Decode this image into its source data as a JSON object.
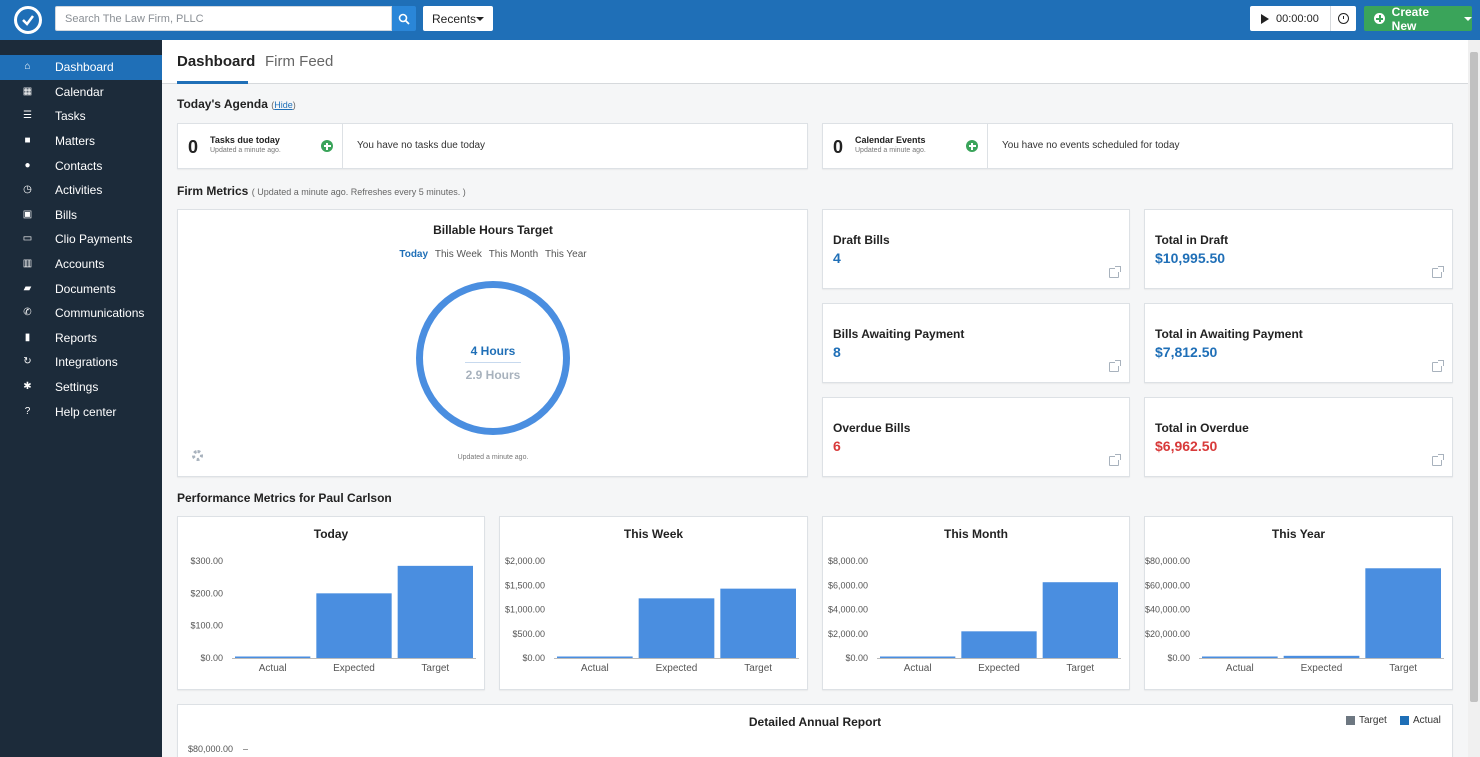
{
  "search": {
    "placeholder": "Search The Law Firm, PLLC"
  },
  "recents_label": "Recents",
  "timer_value": "00:00:00",
  "create_new_label": "Create New",
  "sidebar": {
    "items": [
      {
        "label": "Dashboard",
        "icon": "home-icon",
        "active": true
      },
      {
        "label": "Calendar",
        "icon": "calendar-icon"
      },
      {
        "label": "Tasks",
        "icon": "list-icon"
      },
      {
        "label": "Matters",
        "icon": "briefcase-icon"
      },
      {
        "label": "Contacts",
        "icon": "user-icon"
      },
      {
        "label": "Activities",
        "icon": "clock-icon"
      },
      {
        "label": "Bills",
        "icon": "money-icon"
      },
      {
        "label": "Clio Payments",
        "icon": "card-icon"
      },
      {
        "label": "Accounts",
        "icon": "bank-icon"
      },
      {
        "label": "Documents",
        "icon": "folder-icon"
      },
      {
        "label": "Communications",
        "icon": "phone-icon"
      },
      {
        "label": "Reports",
        "icon": "bar-chart-icon"
      },
      {
        "label": "Integrations",
        "icon": "refresh-icon"
      },
      {
        "label": "Settings",
        "icon": "gear-icon"
      },
      {
        "label": "Help center",
        "icon": "question-icon"
      }
    ]
  },
  "tabs": {
    "dashboard": "Dashboard",
    "firm_feed": "Firm Feed"
  },
  "agenda": {
    "title": "Today's Agenda",
    "hide_link": "Hide",
    "tasks": {
      "count": "0",
      "label": "Tasks due today",
      "updated": "Updated a minute ago.",
      "message": "You have no tasks due today"
    },
    "events": {
      "count": "0",
      "label": "Calendar Events",
      "updated": "Updated a minute ago.",
      "message": "You have no events scheduled for today"
    }
  },
  "firm_metrics": {
    "title": "Firm Metrics",
    "subtitle": "( Updated a minute ago. Refreshes every 5 minutes. )",
    "billable": {
      "title": "Billable Hours Target",
      "periods": [
        "Today",
        "This Week",
        "This Month",
        "This Year"
      ],
      "target": "4 Hours",
      "actual": "2.9 Hours",
      "updated": "Updated a minute ago."
    },
    "cards": [
      {
        "label": "Draft Bills",
        "value": "4",
        "color": "#1f6fb7"
      },
      {
        "label": "Total in Draft",
        "value": "$10,995.50",
        "color": "#1f6fb7"
      },
      {
        "label": "Bills Awaiting Payment",
        "value": "8",
        "color": "#1f6fb7"
      },
      {
        "label": "Total in Awaiting Payment",
        "value": "$7,812.50",
        "color": "#1f6fb7"
      },
      {
        "label": "Overdue Bills",
        "value": "6",
        "color": "#d83a3a"
      },
      {
        "label": "Total in Overdue",
        "value": "$6,962.50",
        "color": "#d83a3a"
      }
    ]
  },
  "performance": {
    "title": "Performance Metrics for Paul Carlson"
  },
  "chart_data": [
    {
      "type": "bar",
      "title": "Today",
      "categories": [
        "Actual",
        "Expected",
        "Target"
      ],
      "values": [
        0,
        200,
        285
      ],
      "yticks": [
        "$300.00",
        "$200.00",
        "$100.00",
        "$0.00"
      ],
      "ylim": [
        0,
        300
      ]
    },
    {
      "type": "bar",
      "title": "This Week",
      "categories": [
        "Actual",
        "Expected",
        "Target"
      ],
      "values": [
        0,
        1230,
        1430
      ],
      "yticks": [
        "$2,000.00",
        "$1,500.00",
        "$1,000.00",
        "$500.00",
        "$0.00"
      ],
      "ylim": [
        0,
        2000
      ]
    },
    {
      "type": "bar",
      "title": "This Month",
      "categories": [
        "Actual",
        "Expected",
        "Target"
      ],
      "values": [
        0,
        2200,
        6250
      ],
      "yticks": [
        "$8,000.00",
        "$6,000.00",
        "$4,000.00",
        "$2,000.00",
        "$0.00"
      ],
      "ylim": [
        0,
        8000
      ]
    },
    {
      "type": "bar",
      "title": "This Year",
      "categories": [
        "Actual",
        "Expected",
        "Target"
      ],
      "values": [
        0,
        1800,
        74000
      ],
      "yticks": [
        "$80,000.00",
        "$60,000.00",
        "$40,000.00",
        "$20,000.00",
        "$0.00"
      ],
      "ylim": [
        0,
        80000
      ]
    }
  ],
  "annual_report": {
    "title": "Detailed Annual Report",
    "legend": [
      {
        "label": "Target",
        "color": "#6d7781"
      },
      {
        "label": "Actual",
        "color": "#1f6fb7"
      }
    ],
    "ytick_top": "$80,000.00"
  },
  "colors": {
    "bar": "#4a8ee0",
    "topbar": "#1f6fb7",
    "sidebar": "#1c2b3a"
  }
}
